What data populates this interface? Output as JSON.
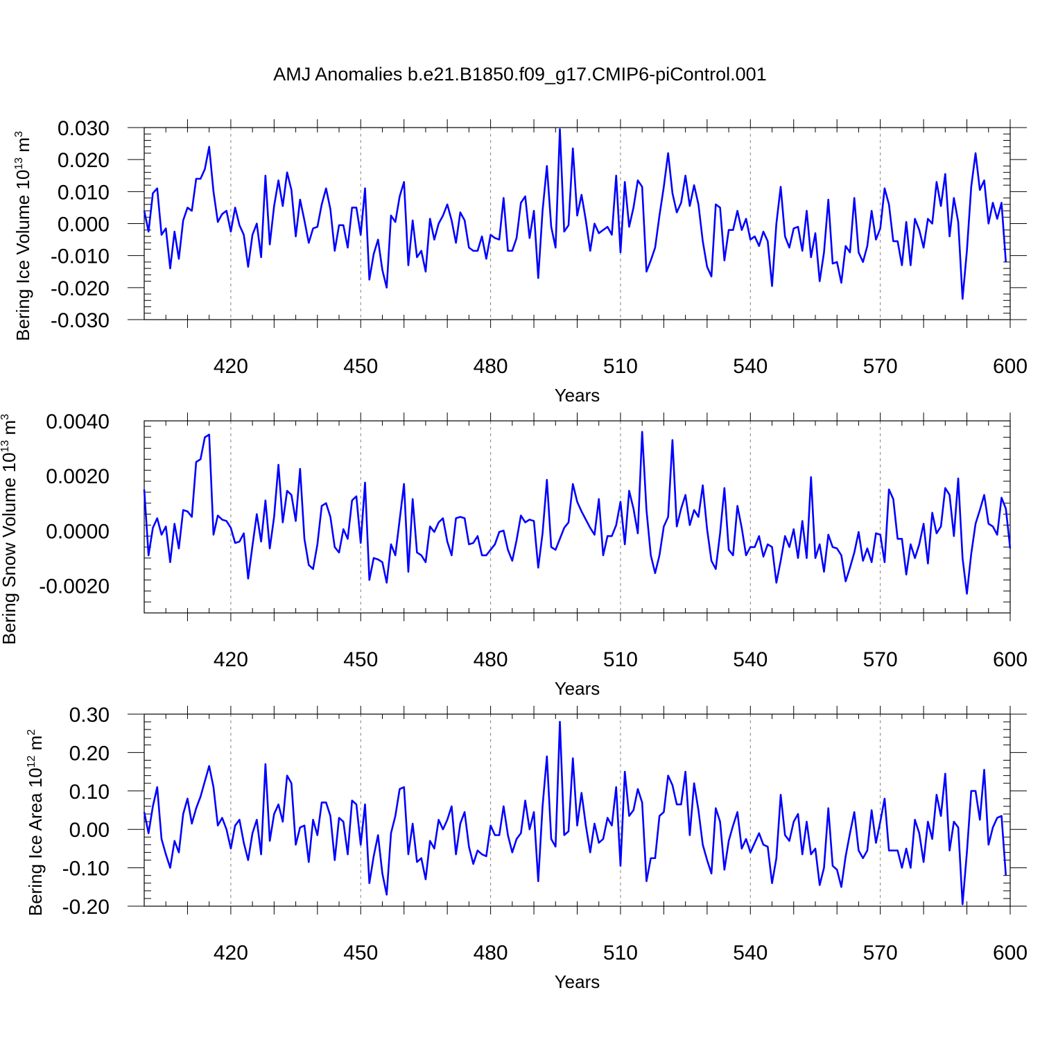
{
  "title": "AMJ Anomalies b.e21.B1850.f09_g17.CMIP6-piControl.001",
  "colors": {
    "line": "#0000ff",
    "axis": "#000000",
    "grid": "#808080"
  },
  "chart_data": [
    {
      "type": "line",
      "ylabel_prefix": "Bering Ice Volume 10",
      "ylabel_exp": "13",
      "ylabel_unit": " m",
      "ylabel_unit_exp": "3",
      "xlabel": "Years",
      "xlim": [
        400,
        600
      ],
      "ylim": [
        -0.03,
        0.03
      ],
      "xticks": [
        420,
        450,
        480,
        510,
        540,
        570,
        600
      ],
      "xtick_labels": [
        "420",
        "450",
        "480",
        "510",
        "540",
        "570",
        "600"
      ],
      "yticks": [
        0.03,
        0.02,
        0.01,
        0.0,
        -0.01,
        -0.02,
        -0.03
      ],
      "ytick_labels": [
        "0.030",
        "0.020",
        "0.010",
        "0.000",
        "-0.010",
        "-0.020",
        "-0.030"
      ],
      "grid": "vertical dashed at major x ticks",
      "series": [
        {
          "x_start": 400,
          "values": [
            0.004,
            -0.0025,
            0.0095,
            0.011,
            -0.0035,
            -0.0015,
            -0.014,
            -0.0025,
            -0.011,
            0.001,
            0.005,
            0.004,
            0.014,
            0.014,
            0.017,
            0.024,
            0.01,
            0.0005,
            0.003,
            0.004,
            -0.0025,
            0.005,
            -0.0005,
            -0.0035,
            -0.0135,
            -0.0035,
            0.0,
            -0.0105,
            0.015,
            -0.0065,
            0.0055,
            0.0135,
            0.0055,
            0.016,
            0.0105,
            -0.004,
            0.0075,
            0.001,
            -0.006,
            -0.0015,
            -0.001,
            0.006,
            0.011,
            0.0045,
            -0.0085,
            -0.0005,
            -0.0005,
            -0.0075,
            0.005,
            0.005,
            -0.0035,
            0.011,
            -0.0175,
            -0.0095,
            -0.005,
            -0.0145,
            -0.02,
            0.0025,
            0.0005,
            0.0085,
            0.013,
            -0.013,
            0.001,
            -0.0105,
            -0.0085,
            -0.015,
            0.0015,
            -0.005,
            0.0,
            0.0025,
            0.006,
            0.001,
            -0.006,
            0.0035,
            0.001,
            -0.0075,
            -0.0085,
            -0.0085,
            -0.004,
            -0.011,
            -0.0035,
            -0.0045,
            -0.005,
            0.008,
            -0.0085,
            -0.0085,
            -0.0045,
            0.0065,
            0.0085,
            -0.0045,
            0.004,
            -0.017,
            0.004,
            0.018,
            -0.001,
            -0.0075,
            0.0295,
            -0.0025,
            -0.0005,
            0.0235,
            0.0025,
            0.009,
            0.001,
            -0.0085,
            0.0,
            -0.003,
            -0.002,
            -0.001,
            -0.0035,
            0.015,
            -0.009,
            0.013,
            -0.001,
            0.005,
            0.0135,
            0.0115,
            -0.015,
            -0.0115,
            -0.0075,
            0.0025,
            0.0115,
            0.022,
            0.0095,
            0.0035,
            0.0065,
            0.015,
            0.0055,
            0.012,
            0.006,
            -0.0055,
            -0.0135,
            -0.0165,
            0.006,
            0.005,
            -0.0115,
            -0.002,
            -0.002,
            0.004,
            -0.002,
            0.0015,
            -0.005,
            -0.004,
            -0.007,
            -0.0025,
            -0.0055,
            -0.0195,
            0.0,
            0.0115,
            -0.004,
            -0.0075,
            -0.0015,
            -0.001,
            -0.0085,
            0.004,
            -0.0105,
            -0.003,
            -0.018,
            -0.009,
            0.0075,
            -0.0125,
            -0.012,
            -0.0185,
            -0.007,
            -0.009,
            0.008,
            -0.009,
            -0.012,
            -0.007,
            0.004,
            -0.005,
            -0.0015,
            0.011,
            0.006,
            -0.0055,
            -0.0055,
            -0.013,
            0.0005,
            -0.013,
            0.0015,
            -0.002,
            -0.0075,
            0.0015,
            0.0,
            0.013,
            0.0055,
            0.0155,
            -0.004,
            0.008,
            0.0005,
            -0.0235,
            -0.0085,
            0.0115,
            0.022,
            0.0105,
            0.0135,
            0.0,
            0.0065,
            0.0015,
            0.0065,
            -0.012
          ]
        }
      ]
    },
    {
      "type": "line",
      "ylabel_prefix": "Bering Snow Volume 10",
      "ylabel_exp": "13",
      "ylabel_unit": " m",
      "ylabel_unit_exp": "3",
      "xlabel": "Years",
      "xlim": [
        400,
        600
      ],
      "ylim": [
        -0.003,
        0.004
      ],
      "xticks": [
        420,
        450,
        480,
        510,
        540,
        570,
        600
      ],
      "xtick_labels": [
        "420",
        "450",
        "480",
        "510",
        "540",
        "570",
        "600"
      ],
      "yticks": [
        0.004,
        0.002,
        0.0,
        -0.002
      ],
      "ytick_labels": [
        "0.0040",
        "0.0020",
        "0.0000",
        "-0.0020"
      ],
      "grid": "vertical dashed at major x ticks",
      "series": [
        {
          "x_start": 400,
          "values": [
            0.0015,
            -0.0009,
            0.0001,
            0.00045,
            -0.00015,
            0.00015,
            -0.00115,
            0.00025,
            -0.00065,
            0.00075,
            0.0007,
            0.0005,
            0.0025,
            0.0026,
            0.0034,
            0.0035,
            -0.00015,
            0.00055,
            0.0004,
            0.00035,
            0.0001,
            -0.00045,
            -0.0004,
            -0.0001,
            -0.00175,
            -0.00055,
            0.0006,
            -0.0004,
            0.0011,
            -0.00065,
            0.0005,
            0.0024,
            0.0003,
            0.00145,
            0.0013,
            0.00035,
            0.00225,
            -0.0003,
            -0.00125,
            -0.0014,
            -0.0005,
            0.0009,
            0.001,
            0.0005,
            -0.0006,
            -0.0008,
            5e-05,
            -0.0003,
            0.0011,
            0.00125,
            -0.00045,
            0.00175,
            -0.0018,
            -0.001,
            -0.00105,
            -0.00115,
            -0.0019,
            -0.0005,
            -0.0009,
            0.0004,
            0.0017,
            -0.0015,
            0.00115,
            -0.0008,
            -0.0009,
            -0.00115,
            0.00015,
            -5e-05,
            0.0003,
            0.00045,
            -0.0004,
            -0.0009,
            0.00045,
            0.0005,
            0.00045,
            -0.0005,
            -0.00045,
            -0.0002,
            -0.0009,
            -0.0009,
            -0.0007,
            -0.0005,
            -5e-05,
            0.0,
            -0.0007,
            -0.0011,
            -0.00035,
            0.00055,
            0.0003,
            0.0004,
            0.00035,
            -0.00135,
            -0.0001,
            0.00185,
            -0.0006,
            -0.0007,
            -0.0003,
            0.0001,
            0.0003,
            0.0017,
            0.00105,
            0.0007,
            0.0004,
            0.0001,
            -0.00015,
            0.00115,
            -0.0009,
            -0.0002,
            -0.0002,
            0.0002,
            0.00105,
            -0.0005,
            0.00145,
            0.0008,
            -0.0001,
            0.0036,
            0.00075,
            -0.0009,
            -0.00155,
            -0.0009,
            0.00015,
            0.0005,
            0.0033,
            0.00015,
            0.0008,
            0.0013,
            0.0002,
            0.00075,
            0.0005,
            0.00165,
            5e-05,
            -0.0011,
            -0.0014,
            -0.0001,
            0.00155,
            -0.0007,
            -0.0009,
            0.0009,
            0.0001,
            -0.0009,
            -0.0006,
            -0.0006,
            -0.0002,
            -0.00095,
            -0.0005,
            -0.0006,
            -0.0019,
            -0.0011,
            -0.0002,
            -0.0006,
            5e-05,
            -0.001,
            0.00035,
            -0.001,
            0.00195,
            -0.001,
            -0.0005,
            -0.0015,
            -0.00015,
            -0.0006,
            -0.00065,
            -0.0009,
            -0.00185,
            -0.00135,
            -0.0008,
            -5e-05,
            -0.0011,
            -0.00065,
            -0.00115,
            -0.0001,
            -0.00015,
            -0.00115,
            0.0015,
            0.00115,
            -0.0003,
            -0.0003,
            -0.0016,
            -0.0005,
            -0.001,
            -0.0005,
            0.00025,
            -0.0012,
            0.00065,
            -0.0001,
            0.00015,
            0.00155,
            0.0013,
            -0.0002,
            0.0019,
            -0.001,
            -0.0023,
            -0.00085,
            0.00025,
            0.00075,
            0.0013,
            0.00025,
            0.00015,
            -0.00015,
            0.0012,
            0.0008,
            -0.00065
          ]
        }
      ]
    },
    {
      "type": "line",
      "ylabel_prefix": "Bering Ice Area 10",
      "ylabel_exp": "12",
      "ylabel_unit": " m",
      "ylabel_unit_exp": "2",
      "xlabel": "Years",
      "xlim": [
        400,
        600
      ],
      "ylim": [
        -0.2,
        0.3
      ],
      "xticks": [
        420,
        450,
        480,
        510,
        540,
        570,
        600
      ],
      "xtick_labels": [
        "420",
        "450",
        "480",
        "510",
        "540",
        "570",
        "600"
      ],
      "yticks": [
        0.3,
        0.2,
        0.1,
        0.0,
        -0.1,
        -0.2
      ],
      "ytick_labels": [
        "0.30",
        "0.20",
        "0.10",
        "0.00",
        "-0.10",
        "-0.20"
      ],
      "grid": "vertical dashed at major x ticks",
      "series": [
        {
          "x_start": 400,
          "values": [
            0.045,
            -0.01,
            0.06,
            0.11,
            -0.025,
            -0.065,
            -0.1,
            -0.03,
            -0.06,
            0.04,
            0.08,
            0.015,
            0.055,
            0.085,
            0.125,
            0.165,
            0.11,
            0.01,
            0.03,
            0.0,
            -0.05,
            0.01,
            0.025,
            -0.035,
            -0.08,
            -0.01,
            0.025,
            -0.065,
            0.17,
            -0.03,
            0.04,
            0.065,
            0.02,
            0.14,
            0.12,
            -0.04,
            0.005,
            0.01,
            -0.085,
            0.025,
            -0.015,
            0.07,
            0.07,
            0.035,
            -0.08,
            0.03,
            0.02,
            -0.065,
            0.075,
            0.065,
            -0.04,
            0.065,
            -0.14,
            -0.07,
            -0.015,
            -0.115,
            -0.17,
            -0.01,
            0.035,
            0.105,
            0.11,
            -0.065,
            0.015,
            -0.085,
            -0.075,
            -0.13,
            -0.03,
            -0.05,
            0.025,
            0.0,
            0.025,
            0.06,
            -0.065,
            0.015,
            0.045,
            -0.045,
            -0.09,
            -0.055,
            -0.065,
            -0.07,
            0.01,
            -0.015,
            -0.015,
            0.06,
            -0.015,
            -0.06,
            -0.025,
            -0.01,
            0.075,
            0.0,
            0.045,
            -0.135,
            0.06,
            0.19,
            -0.025,
            -0.045,
            0.28,
            -0.015,
            -0.005,
            0.185,
            0.01,
            0.095,
            0.01,
            -0.06,
            0.015,
            -0.035,
            -0.025,
            0.03,
            0.01,
            0.11,
            -0.095,
            0.15,
            0.035,
            0.05,
            0.105,
            0.07,
            -0.135,
            -0.075,
            -0.075,
            0.035,
            0.045,
            0.14,
            0.115,
            0.065,
            0.065,
            0.15,
            -0.015,
            0.12,
            0.05,
            -0.04,
            -0.08,
            -0.115,
            0.055,
            0.02,
            -0.105,
            -0.03,
            0.01,
            0.045,
            -0.05,
            -0.025,
            -0.06,
            -0.035,
            -0.01,
            -0.04,
            -0.045,
            -0.14,
            -0.075,
            0.09,
            -0.015,
            -0.03,
            0.02,
            0.04,
            -0.065,
            0.02,
            -0.065,
            -0.05,
            -0.145,
            -0.1,
            0.055,
            -0.095,
            -0.105,
            -0.15,
            -0.07,
            -0.01,
            0.045,
            -0.055,
            -0.075,
            -0.055,
            0.05,
            -0.035,
            0.02,
            0.08,
            -0.055,
            -0.055,
            -0.055,
            -0.1,
            -0.05,
            -0.1,
            0.025,
            -0.01,
            -0.085,
            0.02,
            -0.025,
            0.09,
            0.035,
            0.145,
            -0.055,
            0.02,
            0.005,
            -0.195,
            -0.06,
            0.1,
            0.1,
            0.025,
            0.155,
            -0.04,
            0.005,
            0.03,
            0.035,
            -0.12
          ]
        }
      ]
    }
  ]
}
